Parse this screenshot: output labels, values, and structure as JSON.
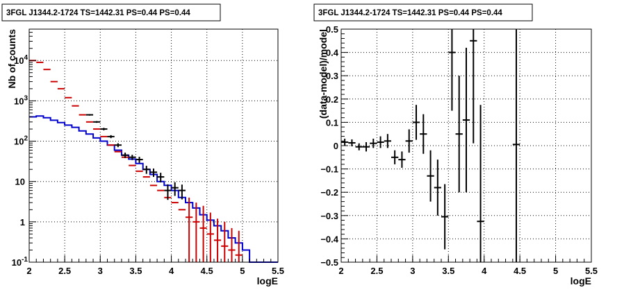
{
  "chart_data": [
    {
      "type": "line",
      "title": "3FGL J1344.2-1724 TS=1442.31 PS=0.44 PS=0.44",
      "xlabel": "logE",
      "ylabel": "Nb of counts",
      "xlim": [
        2,
        5.5
      ],
      "ylim": [
        0.1,
        60000
      ],
      "yscale": "log",
      "grid": true,
      "x_ticks": [
        "2",
        "2.5",
        "3",
        "3.5",
        "4",
        "4.5",
        "5",
        "5.5"
      ],
      "y_ticks": [
        "10^-1",
        "1",
        "10",
        "10^2",
        "10^3",
        "10^4"
      ],
      "bin_edges": [
        2.0,
        2.1,
        2.2,
        2.3,
        2.4,
        2.5,
        2.6,
        2.7,
        2.8,
        2.9,
        3.0,
        3.1,
        3.2,
        3.3,
        3.4,
        3.5,
        3.6,
        3.7,
        3.8,
        3.9,
        4.0,
        4.1,
        4.2,
        4.3,
        4.4,
        4.5,
        4.6,
        4.7,
        4.8,
        4.9,
        5.0,
        5.1,
        5.2,
        5.3,
        5.4,
        5.5
      ],
      "series": [
        {
          "color": "#cc0000",
          "style": "errorbar",
          "x": [
            2.05,
            2.15,
            2.25,
            2.35,
            2.45,
            2.55,
            2.65,
            2.75,
            2.85,
            2.95,
            3.05,
            3.15,
            3.25,
            3.35,
            3.45,
            3.55,
            3.65,
            3.75,
            3.85,
            3.95,
            4.05,
            4.15,
            4.25,
            4.35,
            4.45,
            4.55,
            4.65,
            4.75,
            4.85,
            4.95
          ],
          "y": [
            10000,
            9000,
            6000,
            3000,
            2000,
            1200,
            750,
            450,
            300,
            200,
            130,
            80,
            55,
            40,
            25,
            18,
            13,
            8,
            6,
            4,
            3,
            2,
            1.3,
            1,
            0.7,
            0.5,
            0.35,
            0.25,
            0.2,
            0.15
          ],
          "err_low": [
            0,
            0,
            0,
            0,
            0,
            0,
            0,
            0,
            0,
            0,
            0,
            0,
            0,
            0,
            0,
            0,
            0,
            0,
            0,
            0,
            0,
            0,
            1.2,
            0.93,
            0.68,
            0.49,
            0.34,
            0.245,
            0.196,
            0.147
          ],
          "err_high": [
            0,
            0,
            0,
            0,
            0,
            0,
            0,
            0,
            0,
            0,
            0,
            0,
            0,
            0,
            0,
            0,
            0,
            0,
            0,
            0,
            0,
            0,
            2.7,
            2.0,
            1.8,
            1.2,
            0.85,
            0.75,
            0.5,
            0.45
          ]
        },
        {
          "color": "#000000",
          "style": "errorbar",
          "x": [
            2.85,
            2.95,
            3.05,
            3.15,
            3.25,
            3.35,
            3.45,
            3.55,
            3.65,
            3.75,
            3.85,
            3.95,
            4.05,
            4.15
          ],
          "y": [
            450,
            300,
            200,
            130,
            80,
            45,
            40,
            35,
            20,
            17,
            13,
            6,
            7,
            6
          ],
          "err_low": [
            20,
            15,
            14,
            11,
            9,
            7,
            6,
            6,
            4.5,
            4,
            3.5,
            2.5,
            2.6,
            2.4
          ],
          "err_high": [
            20,
            15,
            14,
            11,
            9,
            7,
            6,
            6,
            4.5,
            4,
            3.5,
            2.5,
            2.6,
            2.4
          ]
        },
        {
          "color": "#0000cc",
          "style": "step",
          "values": [
            400,
            420,
            380,
            330,
            290,
            250,
            220,
            180,
            150,
            120,
            100,
            80,
            60,
            45,
            36,
            28,
            20,
            15,
            10,
            8,
            6,
            4,
            3,
            2.2,
            1.5,
            1.1,
            0.8,
            0.6,
            0.4,
            0.3,
            0.2,
            0.1,
            0.1,
            0.1,
            0.1
          ]
        }
      ]
    },
    {
      "type": "scatter",
      "title": "3FGL J1344.2-1724 TS=1442.31 PS=0.44 PS=0.44",
      "xlabel": "logE",
      "ylabel": "(data-model)/model",
      "xlim": [
        2,
        5.5
      ],
      "ylim": [
        -0.5,
        0.5
      ],
      "grid": true,
      "x_ticks": [
        "2",
        "2.5",
        "3",
        "3.5",
        "4",
        "4.5",
        "5",
        "5.5"
      ],
      "y_ticks": [
        "−0.5",
        "−0.4",
        "−0.3",
        "−0.2",
        "−0.1",
        "0",
        "0.1",
        "0.2",
        "0.3",
        "0.4",
        "0.5"
      ],
      "series": [
        {
          "color": "#000000",
          "style": "errorbar",
          "x": [
            2.05,
            2.15,
            2.25,
            2.35,
            2.45,
            2.55,
            2.65,
            2.75,
            2.85,
            2.95,
            3.05,
            3.15,
            3.25,
            3.35,
            3.45,
            3.55,
            3.65,
            3.75,
            3.85,
            3.95,
            4.45
          ],
          "y": [
            0.015,
            0.012,
            -0.005,
            -0.005,
            0.01,
            0.015,
            0.02,
            -0.05,
            -0.06,
            0.02,
            0.1,
            0.05,
            -0.13,
            -0.18,
            -0.305,
            0.4,
            0.05,
            0.11,
            0.45,
            -0.325,
            0.005
          ],
          "err": [
            0.015,
            0.015,
            0.015,
            0.02,
            0.02,
            0.025,
            0.03,
            0.03,
            0.035,
            0.05,
            0.075,
            0.085,
            0.11,
            0.12,
            0.14,
            0.25,
            0.25,
            0.31,
            0.44,
            0.5,
            0.6
          ]
        }
      ]
    }
  ]
}
